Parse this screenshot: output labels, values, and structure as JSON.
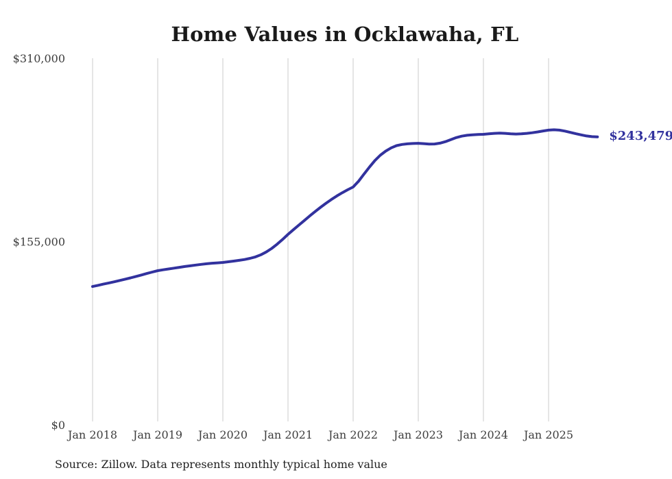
{
  "chart_data": {
    "type": "line",
    "title": "Home Values in Ocklawaha, FL",
    "source_note": "Source: Zillow. Data represents monthly typical home value",
    "xlabel": "",
    "ylabel": "",
    "ylim": [
      0,
      310000
    ],
    "grid": "vertical-only",
    "legend": "none",
    "y_ticks": [
      {
        "value": 0,
        "label": "$0"
      },
      {
        "value": 155000,
        "label": "$155,000"
      },
      {
        "value": 310000,
        "label": "$310,000"
      }
    ],
    "x_ticks": [
      {
        "pos": 2018,
        "label": "Jan 2018"
      },
      {
        "pos": 2019,
        "label": "Jan 2019"
      },
      {
        "pos": 2020,
        "label": "Jan 2020"
      },
      {
        "pos": 2021,
        "label": "Jan 2021"
      },
      {
        "pos": 2022,
        "label": "Jan 2022"
      },
      {
        "pos": 2023,
        "label": "Jan 2023"
      },
      {
        "pos": 2024,
        "label": "Jan 2024"
      },
      {
        "pos": 2025,
        "label": "Jan 2025"
      }
    ],
    "start_year": 2018,
    "start_month": "Jan",
    "frequency": "monthly",
    "series": [
      {
        "name": "Typical home value",
        "color": "#32329e",
        "end_label": "$243,479",
        "end_value": 243479,
        "values": [
          117000,
          118000,
          119000,
          120000,
          121000,
          122100,
          123200,
          124300,
          125500,
          126700,
          128000,
          129200,
          130400,
          131100,
          131800,
          132500,
          133200,
          133900,
          134500,
          135100,
          135700,
          136200,
          136700,
          137000,
          137300,
          137900,
          138500,
          139100,
          139800,
          140800,
          142000,
          143800,
          146200,
          149200,
          152800,
          156800,
          161100,
          165000,
          168900,
          172800,
          176700,
          180400,
          184000,
          187400,
          190600,
          193600,
          196300,
          198800,
          201100,
          206000,
          212000,
          218000,
          223500,
          228000,
          231500,
          234200,
          236100,
          237100,
          237600,
          237900,
          238100,
          237800,
          237400,
          237500,
          238200,
          239500,
          241200,
          242900,
          244100,
          244900,
          245300,
          245500,
          245700,
          246100,
          246500,
          246700,
          246500,
          246100,
          245900,
          246100,
          246500,
          247000,
          247700,
          248500,
          249200,
          249500,
          249200,
          248400,
          247300,
          246200,
          245200,
          244300,
          243700,
          243479
        ]
      }
    ]
  },
  "colors": {
    "line": "#32329e",
    "gridline": "#cbcbcb",
    "tick_text": "#3d3d3d",
    "title_text": "#1a1a1a"
  }
}
